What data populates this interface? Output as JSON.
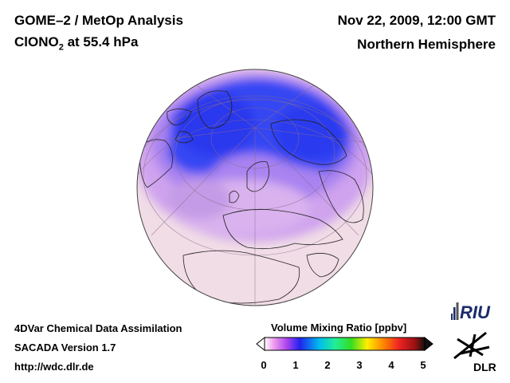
{
  "header": {
    "title_line1": "GOME–2 / MetOp Analysis",
    "species_main": "ClONO",
    "species_sub": "2",
    "species_level": " at 55.4 hPa",
    "date": "Nov 22, 2009, 12:00 GMT",
    "region": "Northern Hemisphere"
  },
  "footer": {
    "line1": "4DVar Chemical Data Assimilation",
    "line2": "SACADA Version 1.7",
    "line3": "http://wdc.dlr.de"
  },
  "colorbar": {
    "title": "Volume Mixing Ratio [ppbv]",
    "ticks": [
      "0",
      "1",
      "2",
      "3",
      "4",
      "5"
    ],
    "range": [
      0,
      5
    ],
    "colors": [
      "#ffffff",
      "#ee99ee",
      "#aa44ee",
      "#2222ee",
      "#00bbee",
      "#22ee99",
      "#33dd22",
      "#ffee00",
      "#ff8800",
      "#ee2222",
      "#991111",
      "#111111"
    ]
  },
  "logos": {
    "riu": "RIU",
    "dlr": "DLR"
  },
  "map": {
    "projection": "orthographic",
    "center": "North Pole",
    "colors": {
      "background_low": "#f1dde6",
      "mid": "#d2a6ef",
      "high": "#3344f5",
      "peak": "#2538ee"
    }
  }
}
